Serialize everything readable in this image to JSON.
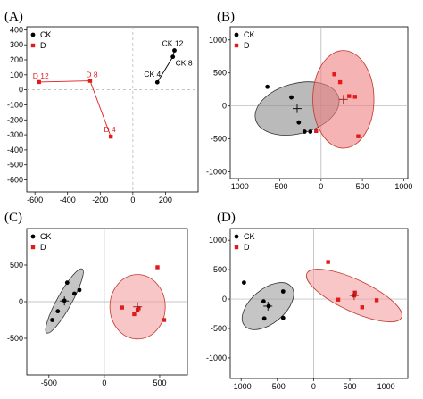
{
  "chart_data": [
    {
      "panel": "(A)",
      "type": "scatter",
      "xlim": [
        -650,
        400
      ],
      "ylim": [
        -680,
        420
      ],
      "xticks": [
        -600,
        -400,
        -200,
        0,
        200
      ],
      "yticks": [
        -600,
        -500,
        -400,
        -300,
        -200,
        -100,
        0,
        100,
        200,
        300,
        400
      ],
      "legend": {
        "position": "top-left",
        "entries": [
          "CK",
          "D"
        ]
      },
      "reference_lines": {
        "x": 0,
        "y": 0,
        "style": "dashed"
      },
      "series": [
        {
          "name": "CK",
          "color": "#000000",
          "marker": "circle",
          "points": [
            {
              "label": "CK 4",
              "x": 150,
              "y": 50
            },
            {
              "label": "CK 8",
              "x": 245,
              "y": 220
            },
            {
              "label": "CK 12",
              "x": 255,
              "y": 262
            }
          ]
        },
        {
          "name": "D",
          "color": "#e31a1c",
          "marker": "square",
          "points": [
            {
              "label": "D 12",
              "x": -575,
              "y": 52
            },
            {
              "label": "D 8",
              "x": -262,
              "y": 60
            },
            {
              "label": "D 4",
              "x": -135,
              "y": -312
            }
          ]
        }
      ]
    },
    {
      "panel": "(B)",
      "type": "scatter",
      "xlim": [
        -1100,
        1050
      ],
      "ylim": [
        -1100,
        1200
      ],
      "xticks": [
        -1000,
        -500,
        0,
        500,
        1000
      ],
      "yticks": [
        -1000,
        -500,
        0,
        500,
        1000
      ],
      "legend": {
        "position": "top-left",
        "entries": [
          "CK",
          "D"
        ]
      },
      "series": [
        {
          "name": "CK",
          "color": "#000000",
          "marker": "circle",
          "points": [
            [
              -650,
              290
            ],
            [
              -360,
              130
            ],
            [
              -270,
              -250
            ],
            [
              -200,
              -390
            ],
            [
              -130,
              -390
            ]
          ],
          "centroid": [
            -290,
            -40
          ],
          "ellipse": {
            "cx": -290,
            "cy": -40,
            "rx": 520,
            "ry": 380,
            "angle_deg": 15,
            "fill": "#8c8c8c",
            "stroke": "#333333"
          }
        },
        {
          "name": "D",
          "color": "#e31a1c",
          "marker": "square",
          "points": [
            [
              160,
              480
            ],
            [
              230,
              360
            ],
            [
              340,
              150
            ],
            [
              410,
              140
            ],
            [
              450,
              -460
            ],
            [
              -60,
              -380
            ]
          ],
          "centroid": [
            270,
            100
          ],
          "ellipse": {
            "cx": 270,
            "cy": 100,
            "rx": 370,
            "ry": 740,
            "angle_deg": 0,
            "fill": "#f08080",
            "stroke": "#c0392b"
          }
        }
      ]
    },
    {
      "panel": "(C)",
      "type": "scatter",
      "xlim": [
        -700,
        750
      ],
      "ylim": [
        -1000,
        1000
      ],
      "xticks": [
        -500,
        0,
        500
      ],
      "yticks": [
        -500,
        0,
        500
      ],
      "legend": {
        "position": "top-left",
        "entries": [
          "CK",
          "D"
        ]
      },
      "series": [
        {
          "name": "CK",
          "color": "#000000",
          "marker": "circle",
          "points": [
            [
              -335,
              260
            ],
            [
              -270,
              110
            ],
            [
              -225,
              160
            ],
            [
              -420,
              -130
            ],
            [
              -470,
              -250
            ],
            [
              -360,
              15
            ]
          ],
          "centroid": [
            -360,
            10
          ],
          "ellipse": {
            "cx": -360,
            "cy": 10,
            "rx": 330,
            "ry": 100,
            "angle_deg": 61,
            "fill": "#9e9e9e",
            "stroke": "#333333"
          }
        },
        {
          "name": "D",
          "color": "#e31a1c",
          "marker": "square",
          "points": [
            [
              480,
              470
            ],
            [
              160,
              -80
            ],
            [
              270,
              -170
            ],
            [
              310,
              -90
            ],
            [
              540,
              -250
            ],
            [
              300,
              -110
            ]
          ],
          "centroid": [
            300,
            -70
          ],
          "ellipse": {
            "cx": 300,
            "cy": -70,
            "rx": 250,
            "ry": 440,
            "angle_deg": 0,
            "fill": "#f4a0a0",
            "stroke": "#c0392b"
          }
        }
      ]
    },
    {
      "panel": "(D)",
      "type": "scatter",
      "xlim": [
        -1150,
        1300
      ],
      "ylim": [
        -1350,
        1200
      ],
      "xticks": [
        -1000,
        -500,
        0,
        500,
        1000
      ],
      "yticks": [
        -1000,
        -500,
        0,
        500,
        1000
      ],
      "legend": {
        "position": "top-left",
        "entries": [
          "CK",
          "D"
        ]
      },
      "series": [
        {
          "name": "CK",
          "color": "#000000",
          "marker": "circle",
          "points": [
            [
              -960,
              280
            ],
            [
              -690,
              -40
            ],
            [
              -420,
              130
            ],
            [
              -680,
              -330
            ],
            [
              -420,
              -320
            ],
            [
              -620,
              -120
            ]
          ],
          "centroid": [
            -630,
            -120
          ],
          "ellipse": {
            "cx": -630,
            "cy": -120,
            "rx": 420,
            "ry": 290,
            "angle_deg": 40,
            "fill": "#9e9e9e",
            "stroke": "#333333"
          }
        },
        {
          "name": "D",
          "color": "#e31a1c",
          "marker": "square",
          "points": [
            [
              200,
              630
            ],
            [
              570,
              110
            ],
            [
              670,
              -140
            ],
            [
              870,
              -20
            ],
            [
              340,
              -10
            ],
            [
              560,
              60
            ]
          ],
          "centroid": [
            560,
            60
          ],
          "ellipse": {
            "cx": 560,
            "cy": 60,
            "rx": 720,
            "ry": 270,
            "angle_deg": -25,
            "fill": "#f4a0a0",
            "stroke": "#c0392b"
          }
        }
      ]
    }
  ]
}
